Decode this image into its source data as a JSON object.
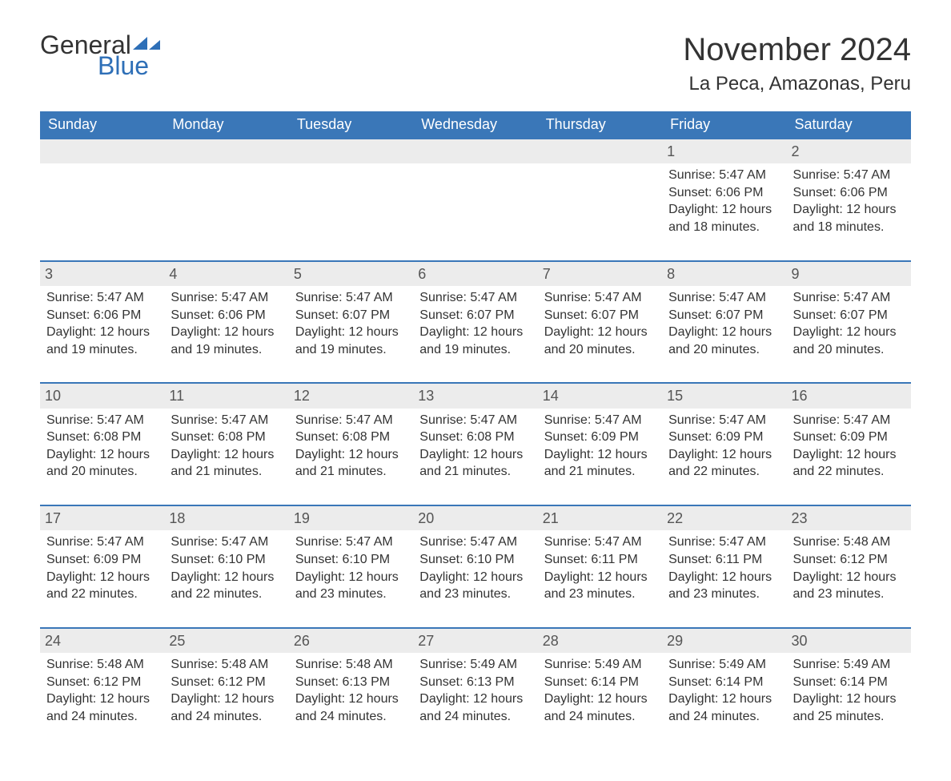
{
  "brand": {
    "word1": "General",
    "word2": "Blue",
    "text_color": "#333333",
    "accent_color": "#2e6fb7"
  },
  "title": "November 2024",
  "location": "La Peca, Amazonas, Peru",
  "colors": {
    "header_bg": "#3a77b8",
    "header_text": "#ffffff",
    "row_border": "#3a77b8",
    "daynum_bg": "#ececec",
    "daynum_text": "#555555",
    "body_text": "#333333",
    "page_bg": "#ffffff"
  },
  "typography": {
    "title_fontsize": 40,
    "location_fontsize": 24,
    "header_fontsize": 18,
    "cell_fontsize": 16,
    "logo_fontsize": 32
  },
  "columns": [
    "Sunday",
    "Monday",
    "Tuesday",
    "Wednesday",
    "Thursday",
    "Friday",
    "Saturday"
  ],
  "weeks": [
    [
      {
        "day": "",
        "empty": true
      },
      {
        "day": "",
        "empty": true
      },
      {
        "day": "",
        "empty": true
      },
      {
        "day": "",
        "empty": true
      },
      {
        "day": "",
        "empty": true
      },
      {
        "day": "1",
        "sunrise": "Sunrise: 5:47 AM",
        "sunset": "Sunset: 6:06 PM",
        "daylight1": "Daylight: 12 hours",
        "daylight2": "and 18 minutes."
      },
      {
        "day": "2",
        "sunrise": "Sunrise: 5:47 AM",
        "sunset": "Sunset: 6:06 PM",
        "daylight1": "Daylight: 12 hours",
        "daylight2": "and 18 minutes."
      }
    ],
    [
      {
        "day": "3",
        "sunrise": "Sunrise: 5:47 AM",
        "sunset": "Sunset: 6:06 PM",
        "daylight1": "Daylight: 12 hours",
        "daylight2": "and 19 minutes."
      },
      {
        "day": "4",
        "sunrise": "Sunrise: 5:47 AM",
        "sunset": "Sunset: 6:06 PM",
        "daylight1": "Daylight: 12 hours",
        "daylight2": "and 19 minutes."
      },
      {
        "day": "5",
        "sunrise": "Sunrise: 5:47 AM",
        "sunset": "Sunset: 6:07 PM",
        "daylight1": "Daylight: 12 hours",
        "daylight2": "and 19 minutes."
      },
      {
        "day": "6",
        "sunrise": "Sunrise: 5:47 AM",
        "sunset": "Sunset: 6:07 PM",
        "daylight1": "Daylight: 12 hours",
        "daylight2": "and 19 minutes."
      },
      {
        "day": "7",
        "sunrise": "Sunrise: 5:47 AM",
        "sunset": "Sunset: 6:07 PM",
        "daylight1": "Daylight: 12 hours",
        "daylight2": "and 20 minutes."
      },
      {
        "day": "8",
        "sunrise": "Sunrise: 5:47 AM",
        "sunset": "Sunset: 6:07 PM",
        "daylight1": "Daylight: 12 hours",
        "daylight2": "and 20 minutes."
      },
      {
        "day": "9",
        "sunrise": "Sunrise: 5:47 AM",
        "sunset": "Sunset: 6:07 PM",
        "daylight1": "Daylight: 12 hours",
        "daylight2": "and 20 minutes."
      }
    ],
    [
      {
        "day": "10",
        "sunrise": "Sunrise: 5:47 AM",
        "sunset": "Sunset: 6:08 PM",
        "daylight1": "Daylight: 12 hours",
        "daylight2": "and 20 minutes."
      },
      {
        "day": "11",
        "sunrise": "Sunrise: 5:47 AM",
        "sunset": "Sunset: 6:08 PM",
        "daylight1": "Daylight: 12 hours",
        "daylight2": "and 21 minutes."
      },
      {
        "day": "12",
        "sunrise": "Sunrise: 5:47 AM",
        "sunset": "Sunset: 6:08 PM",
        "daylight1": "Daylight: 12 hours",
        "daylight2": "and 21 minutes."
      },
      {
        "day": "13",
        "sunrise": "Sunrise: 5:47 AM",
        "sunset": "Sunset: 6:08 PM",
        "daylight1": "Daylight: 12 hours",
        "daylight2": "and 21 minutes."
      },
      {
        "day": "14",
        "sunrise": "Sunrise: 5:47 AM",
        "sunset": "Sunset: 6:09 PM",
        "daylight1": "Daylight: 12 hours",
        "daylight2": "and 21 minutes."
      },
      {
        "day": "15",
        "sunrise": "Sunrise: 5:47 AM",
        "sunset": "Sunset: 6:09 PM",
        "daylight1": "Daylight: 12 hours",
        "daylight2": "and 22 minutes."
      },
      {
        "day": "16",
        "sunrise": "Sunrise: 5:47 AM",
        "sunset": "Sunset: 6:09 PM",
        "daylight1": "Daylight: 12 hours",
        "daylight2": "and 22 minutes."
      }
    ],
    [
      {
        "day": "17",
        "sunrise": "Sunrise: 5:47 AM",
        "sunset": "Sunset: 6:09 PM",
        "daylight1": "Daylight: 12 hours",
        "daylight2": "and 22 minutes."
      },
      {
        "day": "18",
        "sunrise": "Sunrise: 5:47 AM",
        "sunset": "Sunset: 6:10 PM",
        "daylight1": "Daylight: 12 hours",
        "daylight2": "and 22 minutes."
      },
      {
        "day": "19",
        "sunrise": "Sunrise: 5:47 AM",
        "sunset": "Sunset: 6:10 PM",
        "daylight1": "Daylight: 12 hours",
        "daylight2": "and 23 minutes."
      },
      {
        "day": "20",
        "sunrise": "Sunrise: 5:47 AM",
        "sunset": "Sunset: 6:10 PM",
        "daylight1": "Daylight: 12 hours",
        "daylight2": "and 23 minutes."
      },
      {
        "day": "21",
        "sunrise": "Sunrise: 5:47 AM",
        "sunset": "Sunset: 6:11 PM",
        "daylight1": "Daylight: 12 hours",
        "daylight2": "and 23 minutes."
      },
      {
        "day": "22",
        "sunrise": "Sunrise: 5:47 AM",
        "sunset": "Sunset: 6:11 PM",
        "daylight1": "Daylight: 12 hours",
        "daylight2": "and 23 minutes."
      },
      {
        "day": "23",
        "sunrise": "Sunrise: 5:48 AM",
        "sunset": "Sunset: 6:12 PM",
        "daylight1": "Daylight: 12 hours",
        "daylight2": "and 23 minutes."
      }
    ],
    [
      {
        "day": "24",
        "sunrise": "Sunrise: 5:48 AM",
        "sunset": "Sunset: 6:12 PM",
        "daylight1": "Daylight: 12 hours",
        "daylight2": "and 24 minutes."
      },
      {
        "day": "25",
        "sunrise": "Sunrise: 5:48 AM",
        "sunset": "Sunset: 6:12 PM",
        "daylight1": "Daylight: 12 hours",
        "daylight2": "and 24 minutes."
      },
      {
        "day": "26",
        "sunrise": "Sunrise: 5:48 AM",
        "sunset": "Sunset: 6:13 PM",
        "daylight1": "Daylight: 12 hours",
        "daylight2": "and 24 minutes."
      },
      {
        "day": "27",
        "sunrise": "Sunrise: 5:49 AM",
        "sunset": "Sunset: 6:13 PM",
        "daylight1": "Daylight: 12 hours",
        "daylight2": "and 24 minutes."
      },
      {
        "day": "28",
        "sunrise": "Sunrise: 5:49 AM",
        "sunset": "Sunset: 6:14 PM",
        "daylight1": "Daylight: 12 hours",
        "daylight2": "and 24 minutes."
      },
      {
        "day": "29",
        "sunrise": "Sunrise: 5:49 AM",
        "sunset": "Sunset: 6:14 PM",
        "daylight1": "Daylight: 12 hours",
        "daylight2": "and 24 minutes."
      },
      {
        "day": "30",
        "sunrise": "Sunrise: 5:49 AM",
        "sunset": "Sunset: 6:14 PM",
        "daylight1": "Daylight: 12 hours",
        "daylight2": "and 25 minutes."
      }
    ]
  ]
}
